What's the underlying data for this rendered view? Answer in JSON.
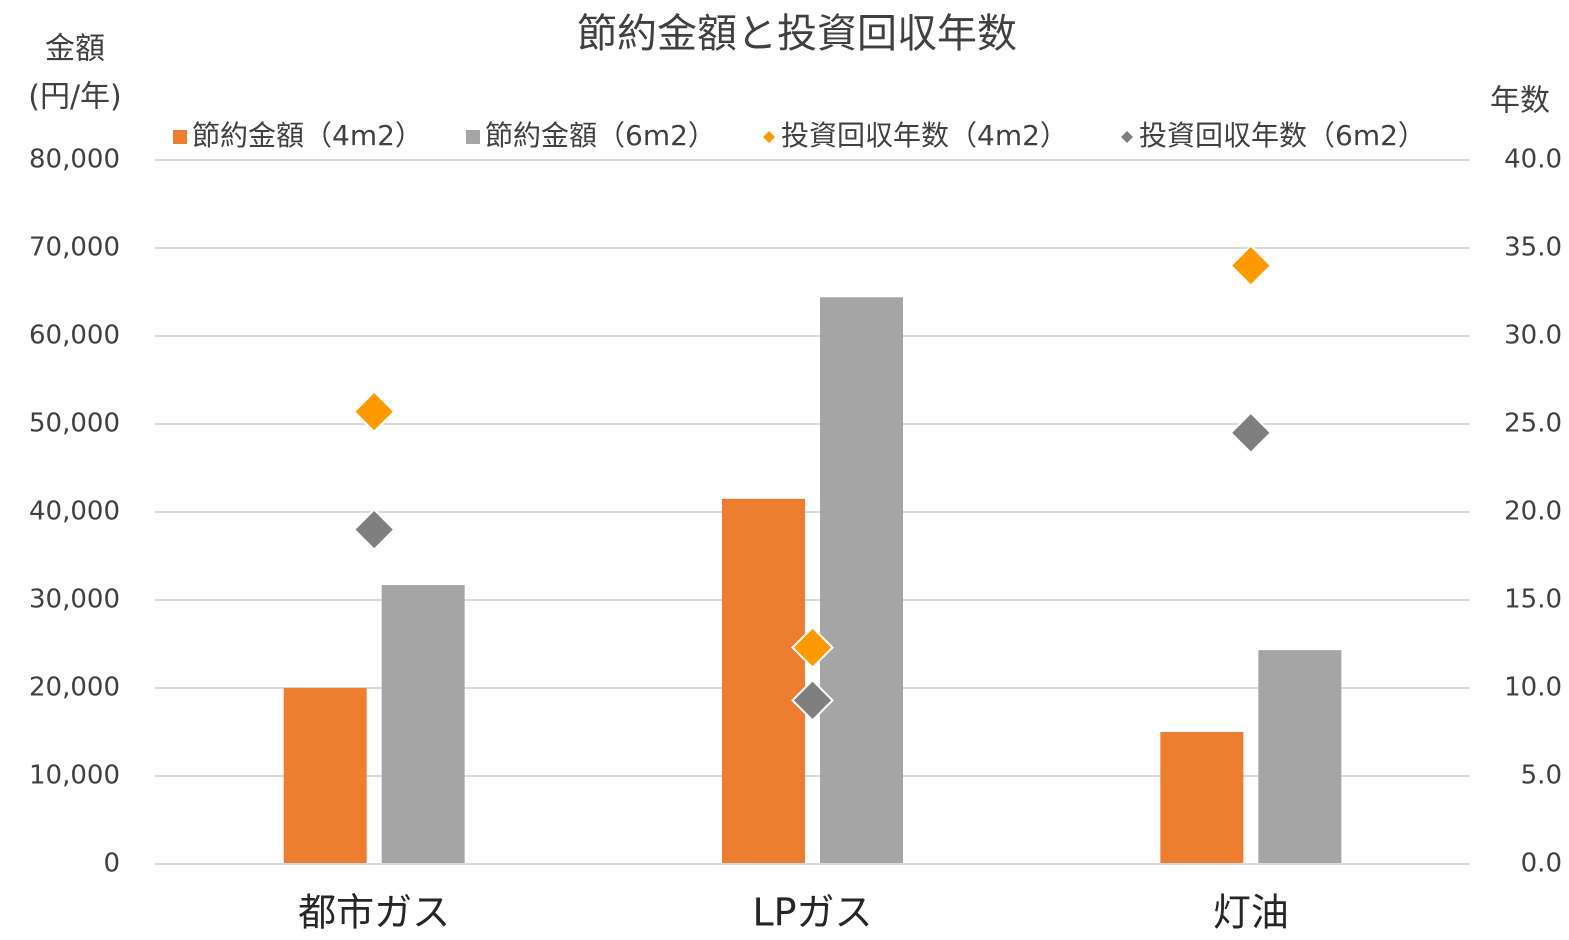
{
  "chart_data": {
    "type": "bar",
    "title": "節約金額と投資回収年数",
    "y_label": [
      "金額",
      "(円/年)"
    ],
    "y2_label": "年数",
    "categories": [
      "都市ガス",
      "LPガス",
      "灯油"
    ],
    "series": [
      {
        "name": "節約金額（4m2）",
        "type": "bar",
        "color": "#ed7d31",
        "values": [
          20000,
          41500,
          15000
        ]
      },
      {
        "name": "節約金額（6m2）",
        "type": "bar",
        "color": "#a5a5a5",
        "values": [
          31700,
          64400,
          24300
        ]
      },
      {
        "name": "投資回収年数（4m2）",
        "type": "scatter",
        "marker": "diamond",
        "axis": "y2",
        "color": "#ff9900",
        "values": [
          25.7,
          12.3,
          34.0
        ]
      },
      {
        "name": "投資回収年数（6m2）",
        "type": "scatter",
        "marker": "diamond",
        "axis": "y2",
        "color": "#7f7f7f",
        "values": [
          19.0,
          9.3,
          24.5
        ]
      }
    ],
    "ylim": [
      0,
      80000
    ],
    "yticks": [
      0,
      {
        "value": 10000,
        "label": "10,000"
      },
      {
        "value": 20000,
        "label": "20,000"
      },
      {
        "value": 30000,
        "label": "30,000"
      },
      {
        "value": 40000,
        "label": "40,000"
      },
      {
        "value": 50000,
        "label": "50,000"
      },
      {
        "value": 60000,
        "label": "60,000"
      },
      {
        "value": 70000,
        "label": "70,000"
      },
      {
        "value": 80000,
        "label": "80,000"
      }
    ],
    "y2lim": [
      0,
      40
    ],
    "y2ticks": [
      {
        "value": 0,
        "label": "0.0"
      },
      {
        "value": 5,
        "label": "5.0"
      },
      {
        "value": 10,
        "label": "10.0"
      },
      {
        "value": 15,
        "label": "15.0"
      },
      {
        "value": 20,
        "label": "20.0"
      },
      {
        "value": 25,
        "label": "25.0"
      },
      {
        "value": 30,
        "label": "30.0"
      },
      {
        "value": 35,
        "label": "35.0"
      },
      {
        "value": 40,
        "label": "40.0"
      }
    ],
    "grid": true,
    "legend": "top"
  }
}
